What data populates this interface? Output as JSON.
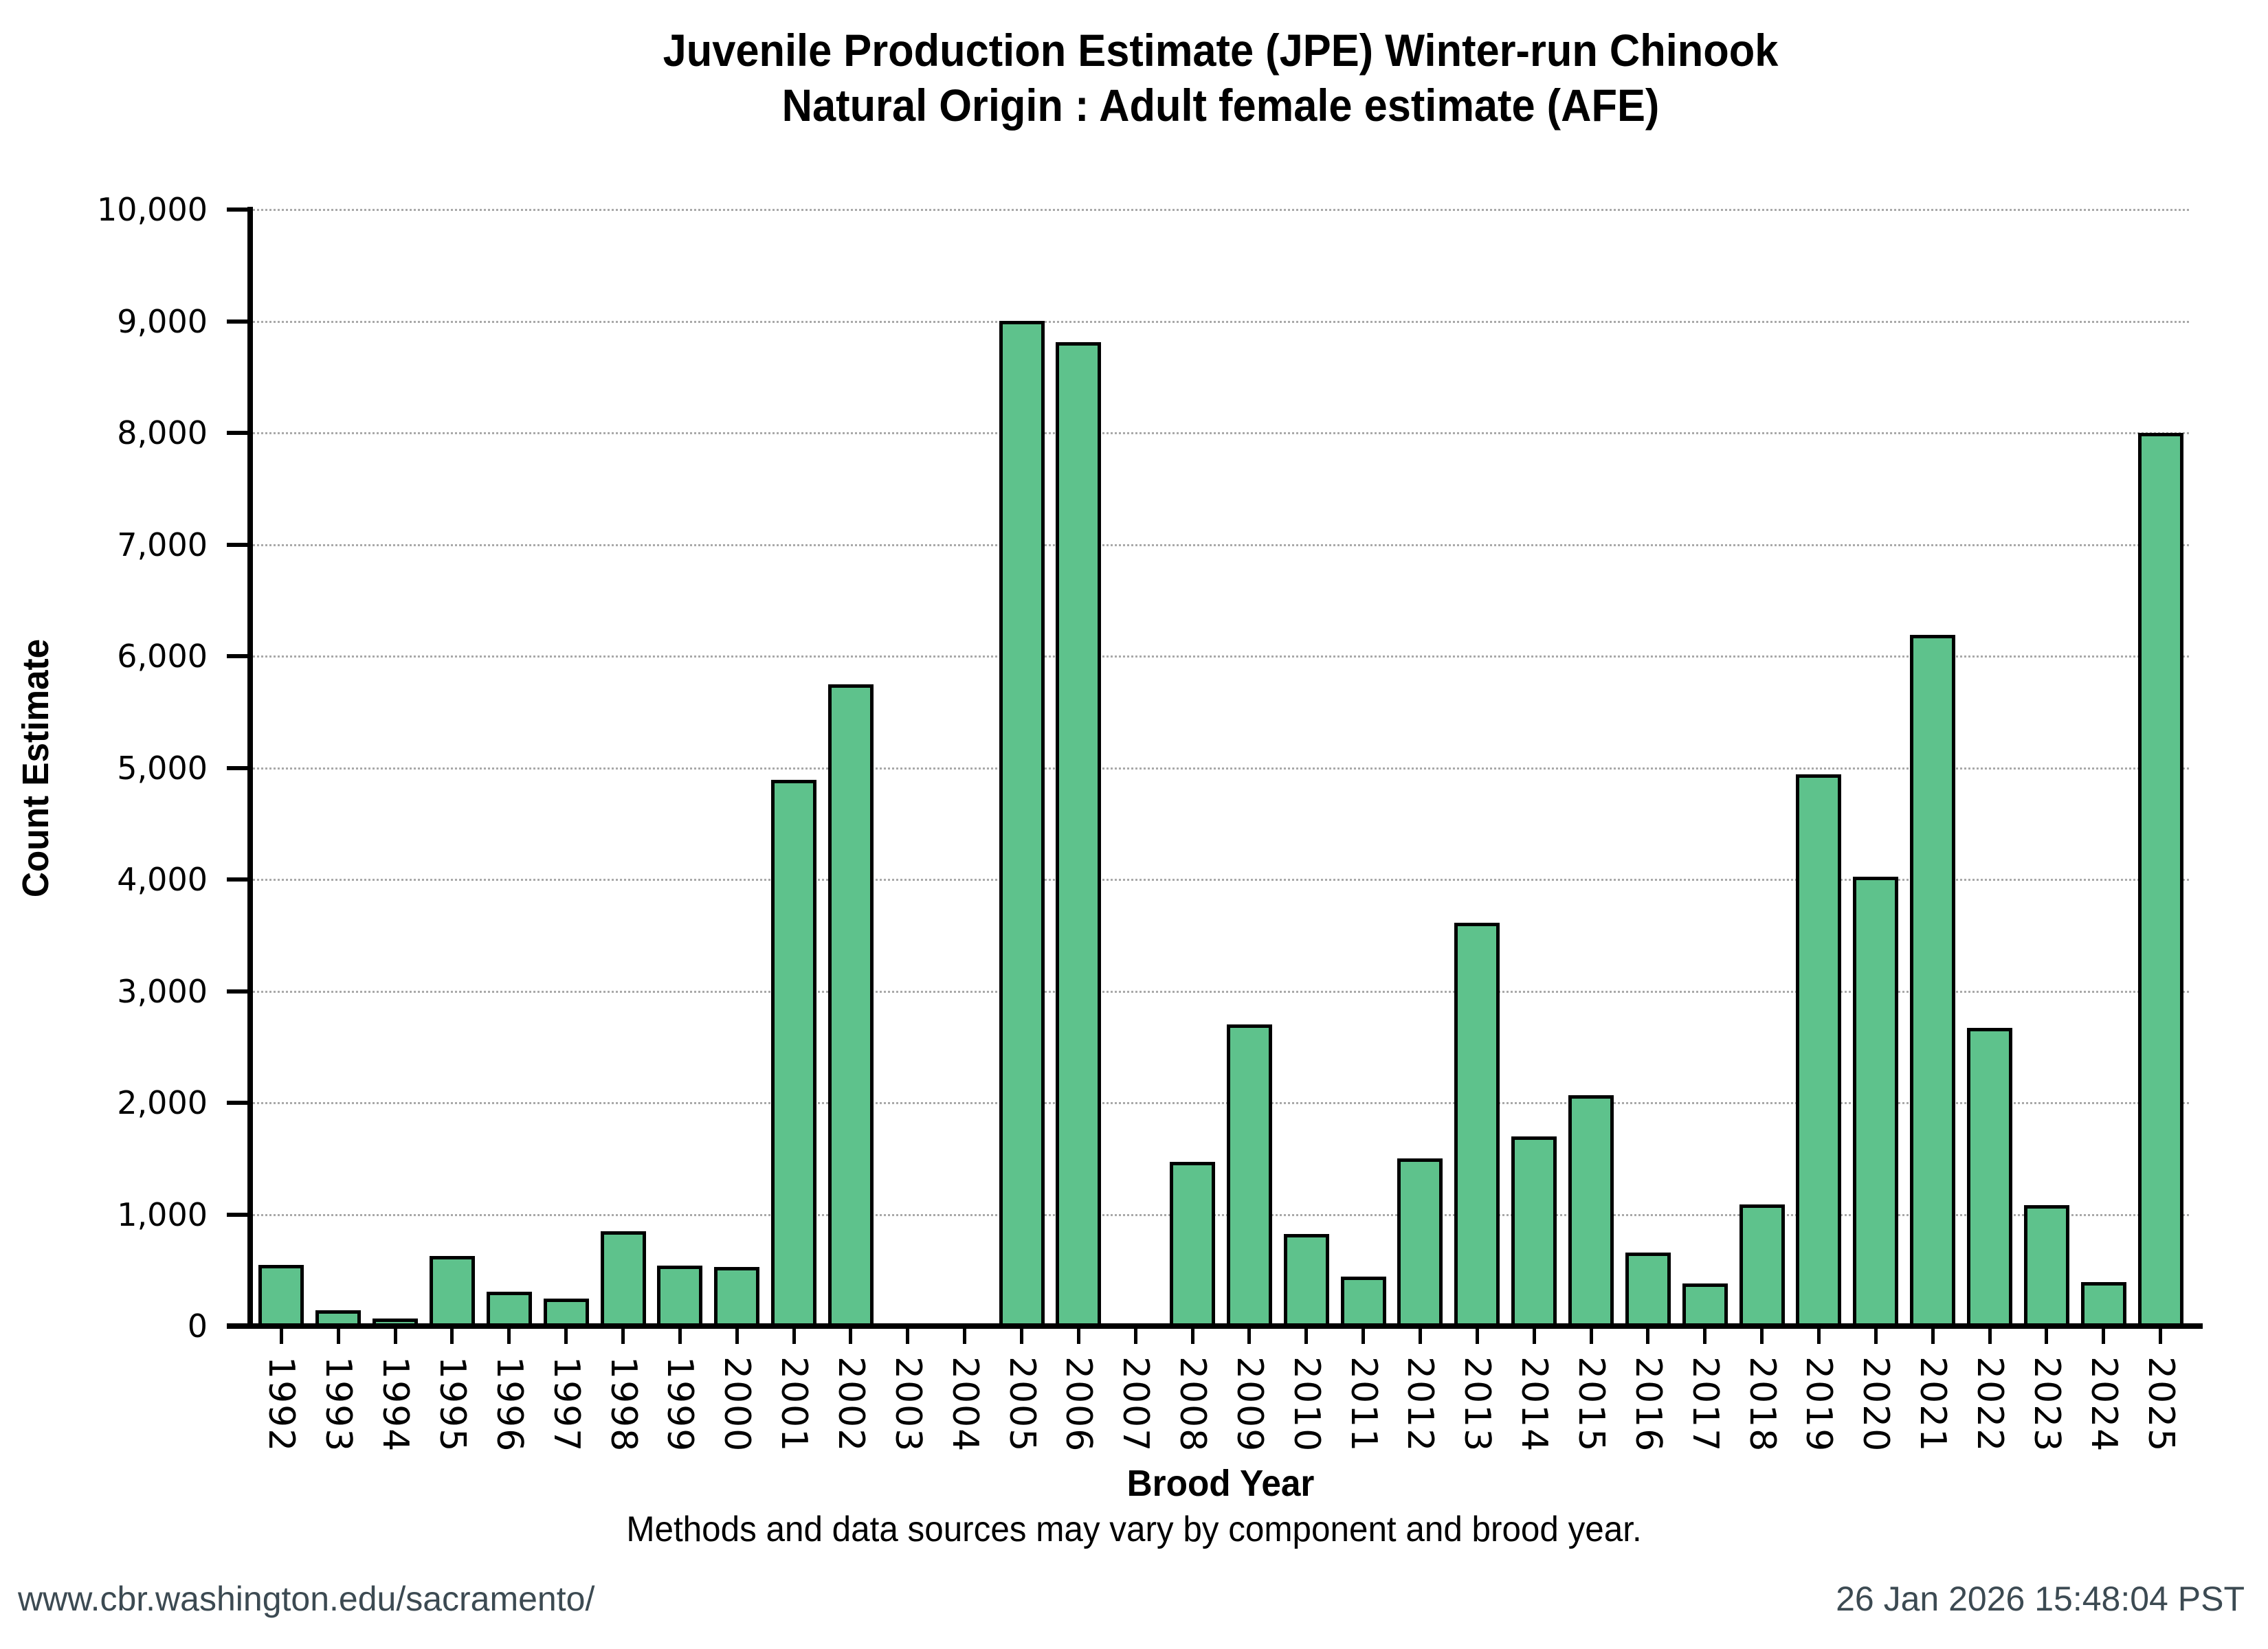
{
  "chart_data": {
    "type": "bar",
    "title": "Juvenile Production Estimate (JPE) Winter-run Chinook",
    "subtitle": "Natural Origin : Adult female estimate (AFE)",
    "xlabel": "Brood Year",
    "ylabel": "Count Estimate",
    "ylim": [
      0,
      10000
    ],
    "y_tick_step": 1000,
    "y_tick_labels": [
      "0",
      "1,000",
      "2,000",
      "3,000",
      "4,000",
      "5,000",
      "6,000",
      "7,000",
      "8,000",
      "9,000",
      "10,000"
    ],
    "grid": "horizontal dotted gridlines at each 1,000",
    "legend": "none",
    "bar_color": "#5ec28c",
    "bar_edge_color": "#000000",
    "categories": [
      "1992",
      "1993",
      "1994",
      "1995",
      "1996",
      "1997",
      "1998",
      "1999",
      "2000",
      "2001",
      "2002",
      "2003",
      "2004",
      "2005",
      "2006",
      "2007",
      "2008",
      "2009",
      "2010",
      "2011",
      "2012",
      "2013",
      "2014",
      "2015",
      "2016",
      "2017",
      "2018",
      "2019",
      "2020",
      "2021",
      "2022",
      "2023",
      "2024",
      "2025"
    ],
    "values": [
      550,
      140,
      65,
      630,
      310,
      245,
      850,
      540,
      530,
      4890,
      5750,
      0,
      0,
      9000,
      8810,
      0,
      1470,
      2700,
      825,
      440,
      1500,
      3610,
      1700,
      2065,
      660,
      380,
      1090,
      4940,
      4025,
      6190,
      2670,
      1080,
      395,
      8000
    ]
  },
  "footnote": "Methods and data sources may vary by component and brood year.",
  "footer": {
    "url": "www.cbr.washington.edu/sacramento/",
    "timestamp": "26 Jan 2026 15:48:04 PST",
    "text_color": "#3c4a52"
  }
}
